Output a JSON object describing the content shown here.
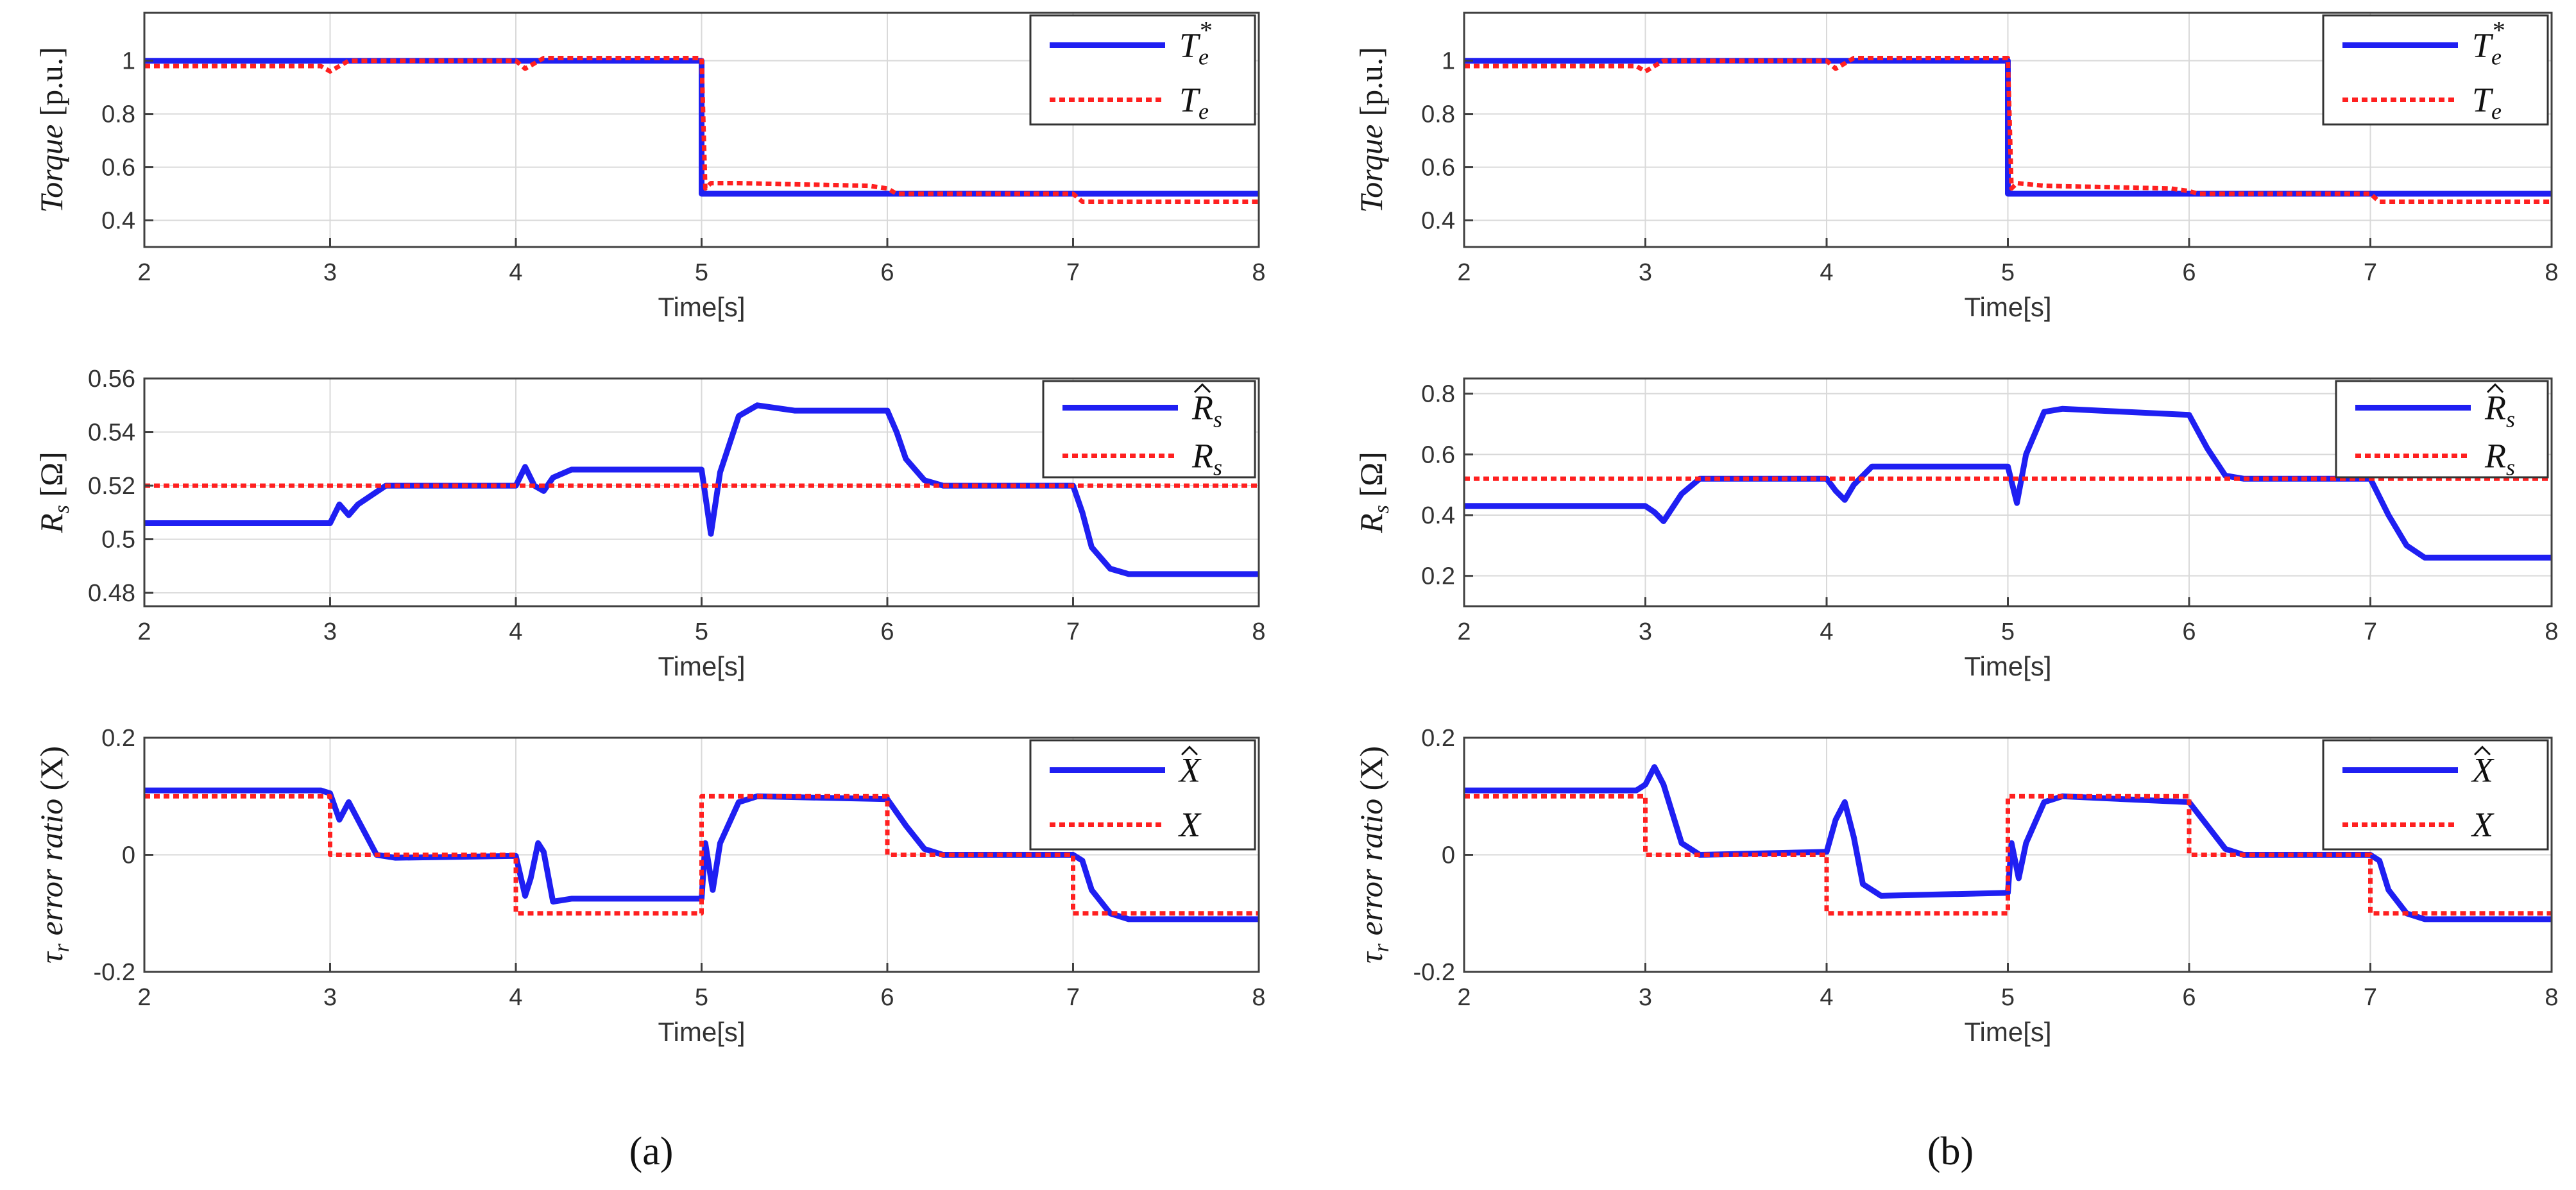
{
  "figure": {
    "panel_labels": [
      "(a)",
      "(b)"
    ]
  },
  "colors": {
    "estimate": "#1f1ff2",
    "reference": "#ff2020",
    "grid": "#d9d9d9",
    "axis": "#404040"
  },
  "chart_data": [
    {
      "id": "a-torque",
      "column": 0,
      "row": 0,
      "type": "line",
      "title": "",
      "xlabel": "Time[s]",
      "ylabel": "Torque [p.u.]",
      "xlim": [
        2,
        8
      ],
      "ylim": [
        0.3,
        1.18
      ],
      "xticks": [
        2,
        3,
        4,
        5,
        6,
        7,
        8
      ],
      "yticks": [
        0.4,
        0.6,
        0.8,
        1
      ],
      "yticklabels": [
        "0.4",
        "0.6",
        "0.8",
        "1"
      ],
      "grid": true,
      "legend_position": "top-right",
      "series": [
        {
          "name": "Te*",
          "legend": {
            "base": "T",
            "sub": "e",
            "sup": "*",
            "hat": false
          },
          "style": "solid",
          "x": [
            2,
            5.0,
            5.0,
            8
          ],
          "y": [
            1.0,
            1.0,
            0.5,
            0.5
          ]
        },
        {
          "name": "Te",
          "legend": {
            "base": "T",
            "sub": "e",
            "sup": "",
            "hat": false
          },
          "style": "dotted",
          "x": [
            2,
            2.95,
            3.0,
            3.05,
            3.1,
            4.0,
            4.05,
            4.1,
            4.15,
            5.0,
            5.02,
            5.05,
            5.2,
            5.9,
            6.0,
            6.05,
            7.0,
            7.05,
            7.1,
            8
          ],
          "y": [
            0.98,
            0.98,
            0.96,
            0.98,
            1.0,
            1.0,
            0.97,
            0.99,
            1.01,
            1.01,
            0.52,
            0.54,
            0.54,
            0.53,
            0.52,
            0.5,
            0.5,
            0.47,
            0.47,
            0.47
          ]
        }
      ]
    },
    {
      "id": "a-rs",
      "column": 0,
      "row": 1,
      "type": "line",
      "title": "",
      "xlabel": "Time[s]",
      "ylabel": "Rs [Ω]",
      "xlim": [
        2,
        8
      ],
      "ylim": [
        0.475,
        0.56
      ],
      "xticks": [
        2,
        3,
        4,
        5,
        6,
        7,
        8
      ],
      "yticks": [
        0.48,
        0.5,
        0.52,
        0.54,
        0.56
      ],
      "yticklabels": [
        "0.48",
        "0.5",
        "0.52",
        "0.54",
        "0.56"
      ],
      "grid": true,
      "legend_position": "top-right",
      "series": [
        {
          "name": "Rs_hat",
          "legend": {
            "base": "R",
            "sub": "s",
            "sup": "",
            "hat": true
          },
          "style": "solid",
          "x": [
            2,
            3.0,
            3.05,
            3.1,
            3.15,
            3.3,
            4.0,
            4.05,
            4.1,
            4.15,
            4.2,
            4.3,
            5.0,
            5.05,
            5.1,
            5.2,
            5.3,
            5.5,
            6.0,
            6.05,
            6.1,
            6.2,
            6.3,
            7.0,
            7.05,
            7.1,
            7.2,
            7.3,
            8
          ],
          "y": [
            0.506,
            0.506,
            0.513,
            0.509,
            0.513,
            0.52,
            0.52,
            0.527,
            0.52,
            0.518,
            0.523,
            0.526,
            0.526,
            0.502,
            0.525,
            0.546,
            0.55,
            0.548,
            0.548,
            0.54,
            0.53,
            0.522,
            0.52,
            0.52,
            0.51,
            0.497,
            0.489,
            0.487,
            0.487
          ]
        },
        {
          "name": "Rs",
          "legend": {
            "base": "R",
            "sub": "s",
            "sup": "",
            "hat": false
          },
          "style": "dotted",
          "x": [
            2,
            8
          ],
          "y": [
            0.52,
            0.52
          ]
        }
      ]
    },
    {
      "id": "a-tau",
      "column": 0,
      "row": 2,
      "type": "line",
      "title": "",
      "xlabel": "Time[s]",
      "ylabel": "τr error ratio (X)",
      "xlim": [
        2,
        8
      ],
      "ylim": [
        -0.2,
        0.2
      ],
      "xticks": [
        2,
        3,
        4,
        5,
        6,
        7,
        8
      ],
      "yticks": [
        -0.2,
        0,
        0.2
      ],
      "yticklabels": [
        "-0.2",
        "0",
        "0.2"
      ],
      "grid": true,
      "legend_position": "top-right",
      "series": [
        {
          "name": "X_hat",
          "legend": {
            "base": "X",
            "sub": "",
            "sup": "",
            "hat": true
          },
          "style": "solid",
          "x": [
            2,
            2.95,
            3.0,
            3.05,
            3.1,
            3.15,
            3.25,
            3.35,
            4.0,
            4.05,
            4.08,
            4.12,
            4.15,
            4.2,
            4.3,
            5.0,
            5.02,
            5.06,
            5.1,
            5.2,
            5.3,
            6.0,
            6.1,
            6.2,
            6.3,
            7.0,
            7.05,
            7.1,
            7.2,
            7.3,
            8
          ],
          "y": [
            0.11,
            0.11,
            0.105,
            0.06,
            0.09,
            0.06,
            0.0,
            -0.005,
            -0.002,
            -0.07,
            -0.04,
            0.02,
            0.005,
            -0.08,
            -0.075,
            -0.075,
            0.02,
            -0.06,
            0.02,
            0.09,
            0.1,
            0.095,
            0.05,
            0.01,
            0.0,
            0.0,
            -0.01,
            -0.06,
            -0.1,
            -0.11,
            -0.11
          ]
        },
        {
          "name": "X",
          "legend": {
            "base": "X",
            "sub": "",
            "sup": "",
            "hat": false
          },
          "style": "dotted",
          "x": [
            2,
            3,
            3,
            4,
            4,
            5,
            5,
            6,
            6,
            7,
            7,
            8
          ],
          "y": [
            0.1,
            0.1,
            0.0,
            0.0,
            -0.1,
            -0.1,
            0.1,
            0.1,
            0.0,
            0.0,
            -0.1,
            -0.1
          ]
        }
      ]
    },
    {
      "id": "b-torque",
      "column": 1,
      "row": 0,
      "type": "line",
      "title": "",
      "xlabel": "Time[s]",
      "ylabel": "Torque [p.u.]",
      "xlim": [
        2,
        8
      ],
      "ylim": [
        0.3,
        1.18
      ],
      "xticks": [
        2,
        3,
        4,
        5,
        6,
        7,
        8
      ],
      "yticks": [
        0.4,
        0.6,
        0.8,
        1
      ],
      "yticklabels": [
        "0.4",
        "0.6",
        "0.8",
        "1"
      ],
      "grid": true,
      "legend_position": "top-right",
      "series": [
        {
          "name": "Te*",
          "legend": {
            "base": "T",
            "sub": "e",
            "sup": "*",
            "hat": false
          },
          "style": "solid",
          "x": [
            2,
            5.0,
            5.0,
            8
          ],
          "y": [
            1.0,
            1.0,
            0.5,
            0.5
          ]
        },
        {
          "name": "Te",
          "legend": {
            "base": "T",
            "sub": "e",
            "sup": "",
            "hat": false
          },
          "style": "dotted",
          "x": [
            2,
            2.95,
            3.0,
            3.05,
            3.1,
            4.0,
            4.05,
            4.1,
            4.15,
            5.0,
            5.02,
            5.05,
            5.2,
            5.9,
            6.0,
            6.05,
            7.0,
            7.05,
            7.1,
            8
          ],
          "y": [
            0.98,
            0.98,
            0.96,
            0.98,
            1.0,
            1.0,
            0.97,
            0.99,
            1.01,
            1.01,
            0.52,
            0.54,
            0.53,
            0.52,
            0.51,
            0.5,
            0.5,
            0.47,
            0.47,
            0.47
          ]
        }
      ]
    },
    {
      "id": "b-rs",
      "column": 1,
      "row": 1,
      "type": "line",
      "title": "",
      "xlabel": "Time[s]",
      "ylabel": "Rs [Ω]",
      "xlim": [
        2,
        8
      ],
      "ylim": [
        0.1,
        0.85
      ],
      "xticks": [
        2,
        3,
        4,
        5,
        6,
        7,
        8
      ],
      "yticks": [
        0.2,
        0.4,
        0.6,
        0.8
      ],
      "yticklabels": [
        "0.2",
        "0.4",
        "0.6",
        "0.8"
      ],
      "grid": true,
      "legend_position": "top-right",
      "series": [
        {
          "name": "Rs_hat",
          "legend": {
            "base": "R",
            "sub": "s",
            "sup": "",
            "hat": true
          },
          "style": "solid",
          "x": [
            2,
            3.0,
            3.05,
            3.1,
            3.2,
            3.3,
            4.0,
            4.05,
            4.1,
            4.15,
            4.25,
            5.0,
            5.05,
            5.1,
            5.2,
            5.3,
            6.0,
            6.1,
            6.2,
            6.3,
            7.0,
            7.1,
            7.2,
            7.3,
            8
          ],
          "y": [
            0.43,
            0.43,
            0.41,
            0.38,
            0.47,
            0.52,
            0.52,
            0.48,
            0.45,
            0.5,
            0.56,
            0.56,
            0.44,
            0.6,
            0.74,
            0.75,
            0.73,
            0.62,
            0.53,
            0.52,
            0.52,
            0.4,
            0.3,
            0.26,
            0.26
          ]
        },
        {
          "name": "Rs",
          "legend": {
            "base": "R",
            "sub": "s",
            "sup": "",
            "hat": false
          },
          "style": "dotted",
          "x": [
            2,
            8
          ],
          "y": [
            0.52,
            0.52
          ]
        }
      ]
    },
    {
      "id": "b-tau",
      "column": 1,
      "row": 2,
      "type": "line",
      "title": "",
      "xlabel": "Time[s]",
      "ylabel": "τr error ratio (X)",
      "xlim": [
        2,
        8
      ],
      "ylim": [
        -0.2,
        0.2
      ],
      "xticks": [
        2,
        3,
        4,
        5,
        6,
        7,
        8
      ],
      "yticks": [
        -0.2,
        0,
        0.2
      ],
      "yticklabels": [
        "-0.2",
        "0",
        "0.2"
      ],
      "grid": true,
      "legend_position": "top-right",
      "series": [
        {
          "name": "X_hat",
          "legend": {
            "base": "X",
            "sub": "",
            "sup": "",
            "hat": true
          },
          "style": "solid",
          "x": [
            2,
            2.95,
            3.0,
            3.05,
            3.1,
            3.2,
            3.3,
            4.0,
            4.05,
            4.1,
            4.15,
            4.2,
            4.3,
            5.0,
            5.02,
            5.06,
            5.1,
            5.2,
            5.3,
            6.0,
            6.1,
            6.2,
            6.3,
            7.0,
            7.05,
            7.1,
            7.2,
            7.3,
            8
          ],
          "y": [
            0.11,
            0.11,
            0.12,
            0.15,
            0.12,
            0.02,
            0.0,
            0.005,
            0.06,
            0.09,
            0.03,
            -0.05,
            -0.07,
            -0.065,
            0.02,
            -0.04,
            0.02,
            0.09,
            0.1,
            0.09,
            0.05,
            0.01,
            0.0,
            0.0,
            -0.01,
            -0.06,
            -0.1,
            -0.11,
            -0.11
          ]
        },
        {
          "name": "X",
          "legend": {
            "base": "X",
            "sub": "",
            "sup": "",
            "hat": false
          },
          "style": "dotted",
          "x": [
            2,
            3,
            3,
            4,
            4,
            5,
            5,
            6,
            6,
            7,
            7,
            8
          ],
          "y": [
            0.1,
            0.1,
            0.0,
            0.0,
            -0.1,
            -0.1,
            0.1,
            0.1,
            0.0,
            0.0,
            -0.1,
            -0.1
          ]
        }
      ]
    }
  ]
}
